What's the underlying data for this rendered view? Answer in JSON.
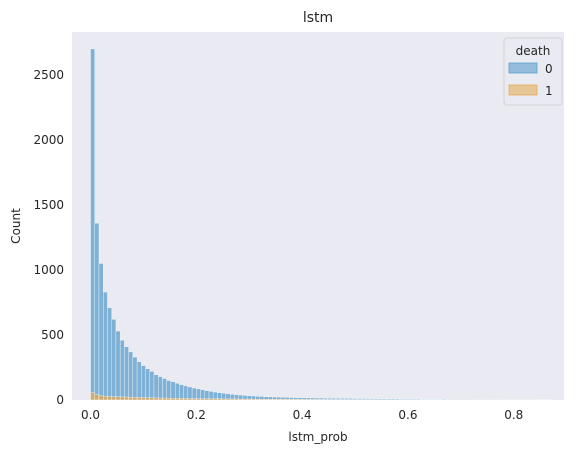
{
  "chart_data": {
    "type": "histogram",
    "title": "lstm",
    "xlabel": "lstm_prob",
    "ylabel": "Count",
    "xlim": [
      -0.035,
      0.895
    ],
    "ylim": [
      0,
      2830
    ],
    "x_ticks": [
      0.0,
      0.2,
      0.4,
      0.6,
      0.8
    ],
    "x_tick_labels": [
      "0.0",
      "0.2",
      "0.4",
      "0.6",
      "0.8"
    ],
    "y_ticks": [
      0,
      500,
      1000,
      1500,
      2000,
      2500
    ],
    "y_tick_labels": [
      "0",
      "500",
      "1000",
      "1500",
      "2000",
      "2500"
    ],
    "grid": false,
    "background": "#eaeaf2",
    "legend": {
      "title": "death",
      "placement": "top-right",
      "entries": [
        {
          "label": "0",
          "color": "#5a9ecb"
        },
        {
          "label": "1",
          "color": "#e5ae57"
        }
      ]
    },
    "bin_start": 0.0,
    "bin_width": 0.008,
    "series": [
      {
        "name": "0",
        "color": "#5a9ecb",
        "values": [
          2700,
          1360,
          1050,
          830,
          710,
          620,
          530,
          460,
          410,
          370,
          330,
          295,
          265,
          240,
          220,
          195,
          180,
          165,
          150,
          140,
          128,
          118,
          108,
          100,
          92,
          85,
          78,
          72,
          66,
          61,
          56,
          52,
          48,
          44,
          41,
          38,
          35,
          33,
          31,
          29,
          27,
          25,
          24,
          23,
          22,
          21,
          20,
          19,
          18,
          17,
          17,
          16,
          16,
          15,
          15,
          14,
          14,
          13,
          13,
          12,
          12,
          12,
          11,
          11,
          11,
          10,
          10,
          10,
          10,
          9,
          9,
          9,
          9,
          8,
          8,
          8,
          8,
          8,
          7,
          7,
          7,
          7,
          7,
          7,
          6,
          6,
          6,
          6,
          6,
          6,
          5,
          5,
          5,
          5,
          5,
          5,
          5,
          4,
          4,
          4,
          4,
          4,
          4,
          4,
          4,
          3,
          3,
          3,
          3
        ]
      },
      {
        "name": "1",
        "color": "#e5ae57",
        "values": [
          55,
          40,
          34,
          30,
          28,
          26,
          25,
          24,
          23,
          22,
          21,
          20,
          19,
          18,
          17,
          16,
          15,
          15,
          14,
          13,
          13,
          12,
          12,
          11,
          11,
          10,
          10,
          10,
          9,
          9,
          9,
          8,
          8,
          8,
          8,
          7,
          7,
          7,
          7,
          6,
          6,
          6,
          6,
          6,
          5,
          5,
          5,
          5,
          5,
          5,
          4,
          4,
          4,
          4,
          4,
          4,
          4,
          3,
          3,
          3,
          3,
          3,
          3,
          3,
          3,
          3,
          3,
          2,
          2,
          2,
          2,
          2,
          2,
          2,
          2,
          2,
          2,
          2,
          2,
          2,
          2,
          2,
          2,
          1,
          1,
          1,
          1,
          1,
          1,
          1,
          1,
          1,
          1,
          1,
          1,
          1,
          1,
          1,
          1,
          1,
          1,
          1,
          1,
          1,
          1,
          1,
          1,
          1,
          1
        ]
      }
    ]
  }
}
